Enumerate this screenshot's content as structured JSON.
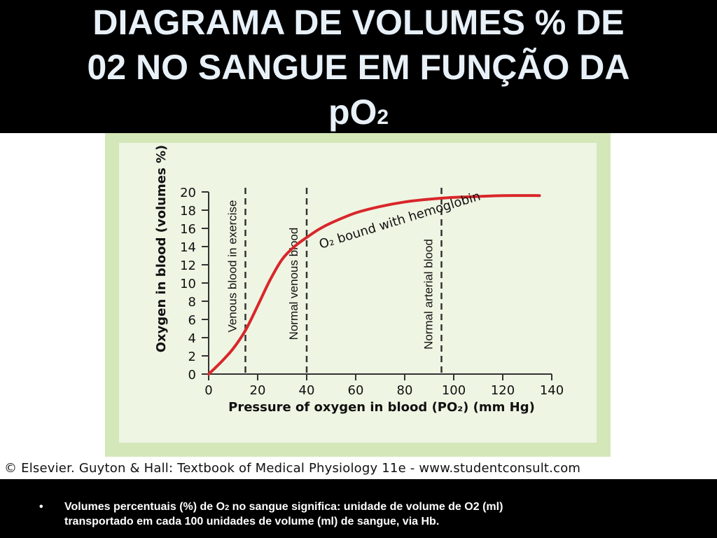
{
  "slide": {
    "title_line1": "DIAGRAMA DE VOLUMES % DE",
    "title_line2": "02 NO SANGUE EM FUNÇÃO DA",
    "title_line3_main": "pO",
    "title_line3_sub": "2",
    "bullet_marker": "•",
    "bullet_part1": "Volumes percentuais (%) de O",
    "bullet_sub": "2",
    "bullet_part2": " no sangue significa: unidade de volume de O2 (ml)",
    "bullet_line2": "transportado em cada 100 unidades de volume (ml) de sangue, via Hb."
  },
  "figure": {
    "copyright": "© Elsevier. Guyton & Hall: Textbook of Medical Physiology 11e - www.studentconsult.com",
    "colors": {
      "curve": "#d9262a",
      "frame": "#d4e7b9",
      "panel": "#eef5e3"
    }
  },
  "chart_data": {
    "type": "line",
    "xlabel": "Pressure of oxygen in blood (PO₂) (mm Hg)",
    "ylabel": "Oxygen in blood (volumes %)",
    "xlim": [
      0,
      140
    ],
    "ylim": [
      0,
      20
    ],
    "xticks": [
      0,
      20,
      40,
      60,
      80,
      100,
      120,
      140
    ],
    "yticks": [
      0,
      2,
      4,
      6,
      8,
      10,
      12,
      14,
      16,
      18,
      20
    ],
    "series": [
      {
        "name": "O₂ bound with hemoglobin",
        "x": [
          0,
          5,
          10,
          15,
          20,
          25,
          30,
          35,
          40,
          45,
          50,
          60,
          70,
          80,
          90,
          100,
          110,
          120,
          135
        ],
        "y": [
          0,
          1.3,
          2.8,
          4.8,
          7.5,
          10.3,
          12.6,
          14.0,
          15.0,
          15.9,
          16.6,
          17.7,
          18.4,
          18.9,
          19.2,
          19.4,
          19.5,
          19.6,
          19.6
        ]
      }
    ],
    "reference_lines": [
      {
        "x": 15,
        "label": "Venous blood in exercise"
      },
      {
        "x": 40,
        "label": "Normal venous blood"
      },
      {
        "x": 95,
        "label": "Normal arterial blood"
      }
    ]
  }
}
